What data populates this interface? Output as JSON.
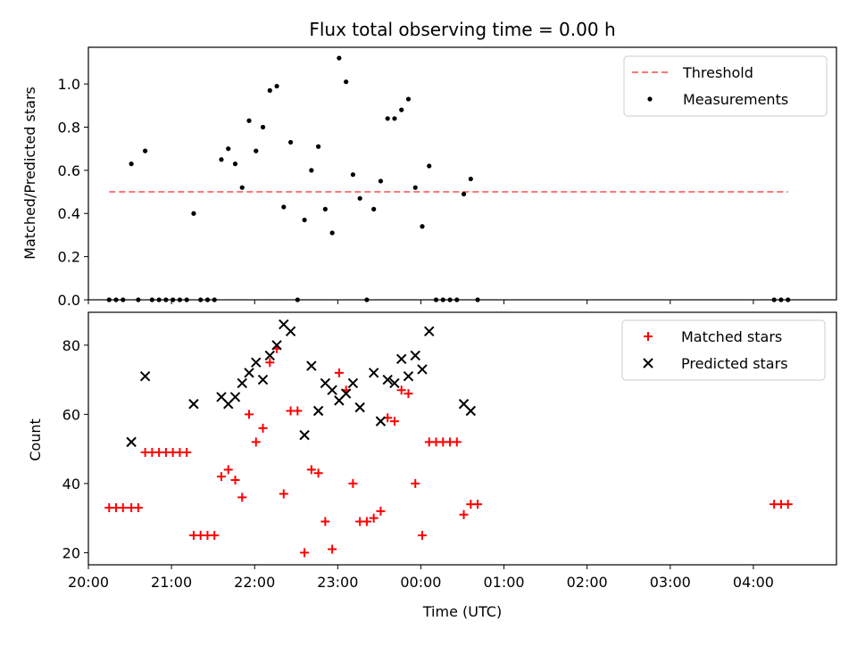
{
  "chart_data": {
    "title": "Flux total observing time = 0.00 h",
    "xlabel": "Time (UTC)",
    "x_ticks": [
      "20:00",
      "21:00",
      "22:00",
      "23:00",
      "00:00",
      "01:00",
      "02:00",
      "03:00",
      "04:00"
    ],
    "panels": [
      {
        "type": "scatter",
        "ylabel": "Matched/Predicted stars",
        "ylim": [
          0,
          1.17
        ],
        "y_ticks": [
          "0.0",
          "0.2",
          "0.4",
          "0.6",
          "0.8",
          "1.0"
        ],
        "legend_position": "top-right",
        "threshold": {
          "name": "Threshold",
          "value": 0.5,
          "x_start": "20:15",
          "x_end": "04:25",
          "color": "#ff7777",
          "style": "dashed"
        },
        "series": [
          {
            "name": "Measurements",
            "color": "#000000",
            "marker": "dot",
            "points": [
              [
                "20:15",
                0.0
              ],
              [
                "20:20",
                0.0
              ],
              [
                "20:25",
                0.0
              ],
              [
                "20:31",
                0.63
              ],
              [
                "20:36",
                0.0
              ],
              [
                "20:41",
                0.69
              ],
              [
                "20:46",
                0.0
              ],
              [
                "20:51",
                0.0
              ],
              [
                "20:56",
                0.0
              ],
              [
                "21:01",
                0.0
              ],
              [
                "21:06",
                0.0
              ],
              [
                "21:11",
                0.0
              ],
              [
                "21:16",
                0.4
              ],
              [
                "21:21",
                0.0
              ],
              [
                "21:26",
                0.0
              ],
              [
                "21:31",
                0.0
              ],
              [
                "21:36",
                0.65
              ],
              [
                "21:41",
                0.7
              ],
              [
                "21:46",
                0.63
              ],
              [
                "21:51",
                0.52
              ],
              [
                "21:56",
                0.83
              ],
              [
                "22:01",
                0.69
              ],
              [
                "22:06",
                0.8
              ],
              [
                "22:11",
                0.97
              ],
              [
                "22:16",
                0.99
              ],
              [
                "22:21",
                0.43
              ],
              [
                "22:26",
                0.73
              ],
              [
                "22:31",
                0.0
              ],
              [
                "22:36",
                0.37
              ],
              [
                "22:41",
                0.6
              ],
              [
                "22:46",
                0.71
              ],
              [
                "22:51",
                0.42
              ],
              [
                "22:56",
                0.31
              ],
              [
                "23:01",
                1.12
              ],
              [
                "23:06",
                1.01
              ],
              [
                "23:11",
                0.58
              ],
              [
                "23:16",
                0.47
              ],
              [
                "23:21",
                0.0
              ],
              [
                "23:26",
                0.42
              ],
              [
                "23:31",
                0.55
              ],
              [
                "23:36",
                0.84
              ],
              [
                "23:41",
                0.84
              ],
              [
                "23:46",
                0.88
              ],
              [
                "23:51",
                0.93
              ],
              [
                "23:56",
                0.52
              ],
              [
                "00:01",
                0.34
              ],
              [
                "00:06",
                0.62
              ],
              [
                "00:11",
                0.0
              ],
              [
                "00:16",
                0.0
              ],
              [
                "00:21",
                0.0
              ],
              [
                "00:26",
                0.0
              ],
              [
                "00:31",
                0.49
              ],
              [
                "00:36",
                0.56
              ],
              [
                "00:41",
                0.0
              ],
              [
                "04:15",
                0.0
              ],
              [
                "04:20",
                0.0
              ],
              [
                "04:25",
                0.0
              ]
            ]
          }
        ]
      },
      {
        "type": "scatter",
        "ylabel": "Count",
        "ylim": [
          16.5,
          89.5
        ],
        "y_ticks": [
          "20",
          "40",
          "60",
          "80"
        ],
        "legend_position": "top-right",
        "series": [
          {
            "name": "Matched stars",
            "color": "#ff0000",
            "marker": "plus",
            "points": [
              [
                "20:15",
                33
              ],
              [
                "20:20",
                33
              ],
              [
                "20:25",
                33
              ],
              [
                "20:31",
                33
              ],
              [
                "20:36",
                33
              ],
              [
                "20:41",
                49
              ],
              [
                "20:46",
                49
              ],
              [
                "20:51",
                49
              ],
              [
                "20:56",
                49
              ],
              [
                "21:01",
                49
              ],
              [
                "21:06",
                49
              ],
              [
                "21:11",
                49
              ],
              [
                "21:16",
                25
              ],
              [
                "21:21",
                25
              ],
              [
                "21:26",
                25
              ],
              [
                "21:31",
                25
              ],
              [
                "21:36",
                42
              ],
              [
                "21:41",
                44
              ],
              [
                "21:46",
                41
              ],
              [
                "21:51",
                36
              ],
              [
                "21:56",
                60
              ],
              [
                "22:01",
                52
              ],
              [
                "22:06",
                56
              ],
              [
                "22:11",
                75
              ],
              [
                "22:16",
                79
              ],
              [
                "22:21",
                37
              ],
              [
                "22:26",
                61
              ],
              [
                "22:31",
                61
              ],
              [
                "22:36",
                20
              ],
              [
                "22:41",
                44
              ],
              [
                "22:46",
                43
              ],
              [
                "22:51",
                29
              ],
              [
                "22:56",
                21
              ],
              [
                "23:01",
                72
              ],
              [
                "23:06",
                67
              ],
              [
                "23:11",
                40
              ],
              [
                "23:16",
                29
              ],
              [
                "23:21",
                29
              ],
              [
                "23:26",
                30
              ],
              [
                "23:31",
                32
              ],
              [
                "23:36",
                59
              ],
              [
                "23:41",
                58
              ],
              [
                "23:46",
                67
              ],
              [
                "23:51",
                66
              ],
              [
                "23:56",
                40
              ],
              [
                "00:01",
                25
              ],
              [
                "00:06",
                52
              ],
              [
                "00:11",
                52
              ],
              [
                "00:16",
                52
              ],
              [
                "00:21",
                52
              ],
              [
                "00:26",
                52
              ],
              [
                "00:31",
                31
              ],
              [
                "00:36",
                34
              ],
              [
                "00:41",
                34
              ],
              [
                "04:15",
                34
              ],
              [
                "04:20",
                34
              ],
              [
                "04:25",
                34
              ]
            ]
          },
          {
            "name": "Predicted stars",
            "color": "#000000",
            "marker": "x",
            "points": [
              [
                "20:31",
                52
              ],
              [
                "20:41",
                71
              ],
              [
                "21:16",
                63
              ],
              [
                "21:36",
                65
              ],
              [
                "21:41",
                63
              ],
              [
                "21:46",
                65
              ],
              [
                "21:51",
                69
              ],
              [
                "21:56",
                72
              ],
              [
                "22:01",
                75
              ],
              [
                "22:06",
                70
              ],
              [
                "22:11",
                77
              ],
              [
                "22:16",
                80
              ],
              [
                "22:21",
                86
              ],
              [
                "22:26",
                84
              ],
              [
                "22:36",
                54
              ],
              [
                "22:41",
                74
              ],
              [
                "22:46",
                61
              ],
              [
                "22:51",
                69
              ],
              [
                "22:56",
                67
              ],
              [
                "23:01",
                64
              ],
              [
                "23:06",
                66
              ],
              [
                "23:11",
                69
              ],
              [
                "23:16",
                62
              ],
              [
                "23:26",
                72
              ],
              [
                "23:31",
                58
              ],
              [
                "23:36",
                70
              ],
              [
                "23:41",
                69
              ],
              [
                "23:46",
                76
              ],
              [
                "23:51",
                71
              ],
              [
                "23:56",
                77
              ],
              [
                "00:01",
                73
              ],
              [
                "00:06",
                84
              ],
              [
                "00:31",
                63
              ],
              [
                "00:36",
                61
              ]
            ]
          }
        ]
      }
    ]
  }
}
